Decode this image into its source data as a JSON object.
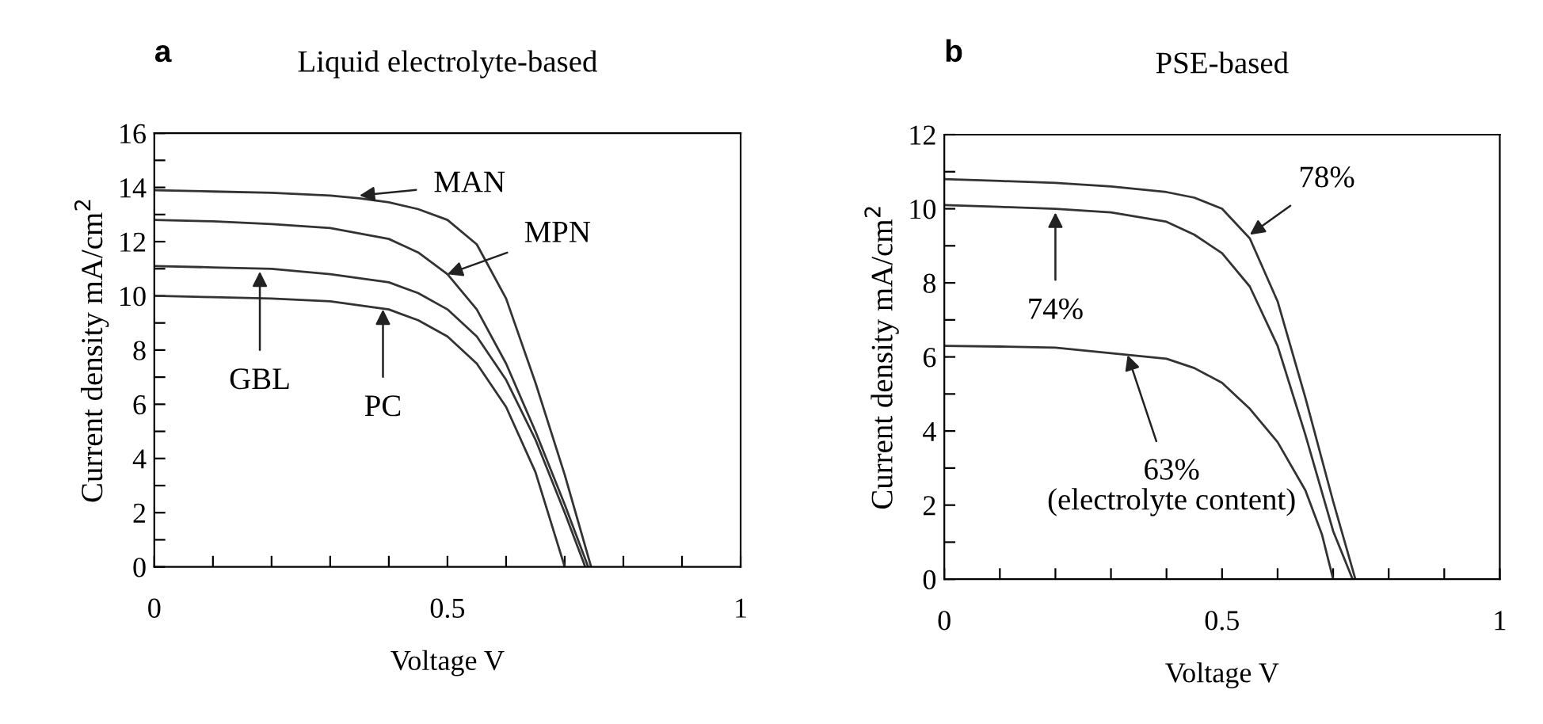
{
  "chart_data": [
    {
      "type": "line",
      "title": "Liquid electrolyte-based",
      "xlabel": "Voltage V",
      "ylabel": "Current density mA/cm$^{2}$",
      "annotations": [
        "a",
        {
          "text": "MAN",
          "x": 0.35,
          "y": 13.7
        },
        {
          "text": "MPN",
          "x": 0.5,
          "y": 10.8
        },
        {
          "text": "GBL",
          "x": 0.18,
          "y": 10.9
        },
        {
          "text": "PC",
          "x": 0.39,
          "y": 9.5
        }
      ],
      "xlim": [
        0,
        1
      ],
      "xticks": [
        0,
        {
          "value": 0.1,
          "label": null
        },
        {
          "value": 0.2,
          "label": null
        },
        {
          "value": 0.3,
          "label": null
        },
        {
          "value": 0.4,
          "label": null
        },
        0.5,
        {
          "value": 0.6,
          "label": null
        },
        {
          "value": 0.7,
          "label": null
        },
        {
          "value": 0.8,
          "label": null
        },
        {
          "value": 0.9,
          "label": null
        },
        1
      ],
      "ylim": [
        0,
        16
      ],
      "yticks": [
        0,
        {
          "value": 1,
          "label": null
        },
        2,
        {
          "value": 3,
          "label": null
        },
        4,
        {
          "value": 5,
          "label": null
        },
        6,
        {
          "value": 7,
          "label": null
        },
        8,
        {
          "value": 9,
          "label": null
        },
        10,
        {
          "value": 11,
          "label": null
        },
        12,
        {
          "value": 13,
          "label": null
        },
        14,
        {
          "value": 15,
          "label": null
        },
        16
      ],
      "series": [
        {
          "color": "#333333",
          "x": [
            0,
            0.1,
            0.2,
            0.3,
            0.35,
            0.4,
            0.45,
            0.5,
            0.55,
            0.6,
            0.65,
            0.7,
            0.745
          ],
          "values": [
            13.9,
            13.85,
            13.8,
            13.7,
            13.6,
            13.45,
            13.2,
            12.8,
            11.9,
            9.9,
            6.8,
            3.4,
            0
          ]
        },
        {
          "color": "#333333",
          "x": [
            0,
            0.1,
            0.2,
            0.3,
            0.4,
            0.45,
            0.5,
            0.55,
            0.6,
            0.65,
            0.7,
            0.74
          ],
          "values": [
            12.8,
            12.75,
            12.65,
            12.5,
            12.1,
            11.6,
            10.8,
            9.5,
            7.5,
            5.0,
            2.3,
            0
          ]
        },
        {
          "color": "#333333",
          "x": [
            0,
            0.1,
            0.2,
            0.3,
            0.4,
            0.45,
            0.5,
            0.55,
            0.6,
            0.65,
            0.7,
            0.735
          ],
          "values": [
            11.1,
            11.05,
            11.0,
            10.8,
            10.5,
            10.1,
            9.5,
            8.5,
            6.9,
            4.7,
            2.0,
            0
          ]
        },
        {
          "color": "#333333",
          "x": [
            0,
            0.1,
            0.2,
            0.3,
            0.4,
            0.45,
            0.5,
            0.55,
            0.6,
            0.65,
            0.7
          ],
          "values": [
            10.0,
            9.95,
            9.9,
            9.8,
            9.5,
            9.1,
            8.5,
            7.5,
            5.9,
            3.5,
            0
          ]
        }
      ]
    },
    {
      "type": "line",
      "title": "PSE-based",
      "xlabel": "Voltage V",
      "ylabel": "Current density mA/cm$^{2}$",
      "annotations": [
        "b",
        {
          "text": "78%",
          "x": 0.55,
          "y": 9.3
        },
        {
          "text": "74%",
          "x": 0.2,
          "y": 9.9
        },
        {
          "text": "63%\n(electrolyte content)",
          "x": 0.33,
          "y": 6.05
        }
      ],
      "xlim": [
        0,
        1
      ],
      "xticks": [
        0,
        {
          "value": 0.1,
          "label": null
        },
        {
          "value": 0.2,
          "label": null
        },
        {
          "value": 0.3,
          "label": null
        },
        {
          "value": 0.4,
          "label": null
        },
        0.5,
        {
          "value": 0.6,
          "label": null
        },
        {
          "value": 0.7,
          "label": null
        },
        {
          "value": 0.8,
          "label": null
        },
        {
          "value": 0.9,
          "label": null
        },
        1
      ],
      "ylim": [
        0,
        12
      ],
      "yticks": [
        0,
        {
          "value": 1,
          "label": null
        },
        2,
        {
          "value": 3,
          "label": null
        },
        4,
        {
          "value": 5,
          "label": null
        },
        6,
        {
          "value": 7,
          "label": null
        },
        8,
        {
          "value": 9,
          "label": null
        },
        10,
        {
          "value": 11,
          "label": null
        },
        12
      ],
      "series": [
        {
          "color": "#333333",
          "x": [
            0,
            0.1,
            0.2,
            0.3,
            0.4,
            0.45,
            0.5,
            0.55,
            0.6,
            0.65,
            0.7,
            0.74
          ],
          "values": [
            10.8,
            10.75,
            10.7,
            10.6,
            10.45,
            10.3,
            10.0,
            9.2,
            7.5,
            4.9,
            2.1,
            0
          ]
        },
        {
          "color": "#333333",
          "x": [
            0,
            0.1,
            0.2,
            0.3,
            0.4,
            0.45,
            0.5,
            0.55,
            0.6,
            0.65,
            0.7,
            0.735
          ],
          "values": [
            10.1,
            10.05,
            10.0,
            9.9,
            9.65,
            9.3,
            8.8,
            7.9,
            6.3,
            3.9,
            1.3,
            0
          ]
        },
        {
          "color": "#333333",
          "x": [
            0,
            0.1,
            0.2,
            0.3,
            0.4,
            0.45,
            0.5,
            0.55,
            0.6,
            0.65,
            0.68,
            0.7
          ],
          "values": [
            6.3,
            6.28,
            6.25,
            6.1,
            5.95,
            5.7,
            5.3,
            4.6,
            3.7,
            2.4,
            1.2,
            0
          ]
        }
      ]
    }
  ]
}
